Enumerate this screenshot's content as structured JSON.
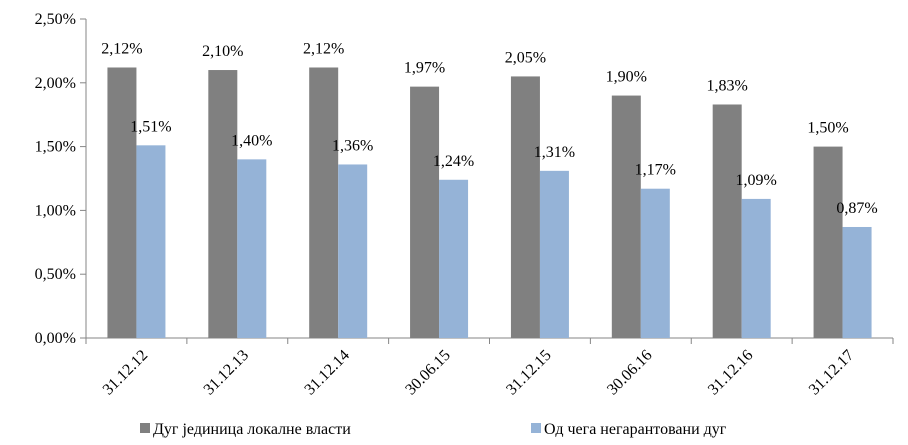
{
  "chart_data": {
    "type": "bar",
    "title": "",
    "xlabel": "",
    "ylabel": "",
    "categories": [
      "31.12.12",
      "31.12.13",
      "31.12.14",
      "30.06.15",
      "31.12.15",
      "30.06.16",
      "31.12.16",
      "31.12.17"
    ],
    "series": [
      {
        "name": "Дуг јединица локалне власти",
        "color": "#808080",
        "values": [
          2.12,
          2.1,
          2.12,
          1.97,
          2.05,
          1.9,
          1.83,
          1.5
        ],
        "labels": [
          "2,12%",
          "2,10%",
          "2,12%",
          "1,97%",
          "2,05%",
          "1,90%",
          "1,83%",
          "1,50%"
        ]
      },
      {
        "name": "Од чега негарантовани дуг",
        "color": "#95B3D7",
        "values": [
          1.51,
          1.4,
          1.36,
          1.24,
          1.31,
          1.17,
          1.09,
          0.87
        ],
        "labels": [
          "1,51%",
          "1,40%",
          "1,36%",
          "1,24%",
          "1,31%",
          "1,17%",
          "1,09%",
          "0,87%"
        ]
      }
    ],
    "ylim": [
      0,
      2.5
    ],
    "yticks": [
      0,
      0.5,
      1.0,
      1.5,
      2.0,
      2.5
    ],
    "ytick_labels": [
      "0,00%",
      "0,50%",
      "1,00%",
      "1,50%",
      "2,00%",
      "2,50%"
    ],
    "grid": false,
    "legend_position": "bottom"
  }
}
